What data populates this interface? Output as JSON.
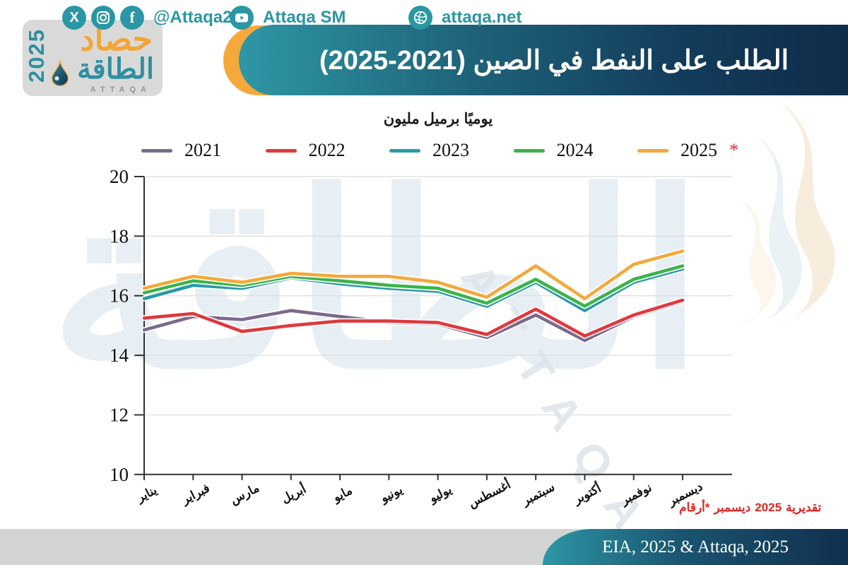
{
  "header": {
    "logo": {
      "word_top": "حصاد",
      "word_bottom": "الطاقة",
      "year": "2025",
      "latin": "ATTAQA"
    },
    "title": "الطلب على النفط في الصين",
    "title_range": "(2025-2021)"
  },
  "chart_data": {
    "type": "line",
    "title": "الطلب على النفط في الصين (2025-2021)",
    "unit_label": "مليون برميل يوميًا",
    "categories": [
      "يناير",
      "فبراير",
      "مارس",
      "أبريل",
      "مايو",
      "يونيو",
      "يوليو",
      "أغسطس",
      "سبتمبر",
      "أكتوبر",
      "نوفمبر",
      "ديسمبر"
    ],
    "ylim": [
      10,
      20
    ],
    "yticks": [
      10,
      12,
      14,
      16,
      18,
      20
    ],
    "grid": true,
    "legend_position": "top",
    "series": [
      {
        "name": "2021",
        "color": "#7a6a8c",
        "values": [
          14.85,
          15.3,
          15.2,
          15.5,
          15.3,
          15.1,
          15.05,
          14.6,
          15.35,
          14.5,
          15.3,
          15.8
        ]
      },
      {
        "name": "2022",
        "color": "#dd3a3e",
        "values": [
          15.25,
          15.4,
          14.8,
          15.0,
          15.15,
          15.15,
          15.1,
          14.7,
          15.55,
          14.65,
          15.35,
          15.85
        ]
      },
      {
        "name": "2023",
        "color": "#2a9aa8",
        "values": [
          15.9,
          16.35,
          16.25,
          16.6,
          16.4,
          16.25,
          16.15,
          15.65,
          16.45,
          15.5,
          16.45,
          16.9
        ]
      },
      {
        "name": "2024",
        "color": "#3bb44a",
        "values": [
          16.1,
          16.5,
          16.35,
          16.65,
          16.5,
          16.35,
          16.25,
          15.75,
          16.55,
          15.65,
          16.55,
          17.0
        ]
      },
      {
        "name": "2025",
        "suffix": "*",
        "color": "#f3a93c",
        "values": [
          16.25,
          16.65,
          16.45,
          16.75,
          16.65,
          16.65,
          16.45,
          15.95,
          17.0,
          15.9,
          17.05,
          17.5
        ]
      }
    ]
  },
  "footnote": "*أرقام ديسمبر 2025 تقديرية",
  "footer": {
    "social_handle": "@Attaqa2",
    "youtube_handle": "Attaqa SM",
    "website": "attaqa.net",
    "source": "EIA, 2025 & Attaqa, 2025"
  },
  "watermark": {
    "center_word": "الطاقة",
    "latin": "ATTAQA"
  },
  "colors": {
    "banner_teal": "#2f97a5",
    "banner_navy": "#0f2c49",
    "accent_orange": "#f5a83c",
    "brand_teal": "#2b96a4",
    "footnote_red": "#e02525",
    "grid": "#dcdcdc",
    "axis": "#333333"
  }
}
